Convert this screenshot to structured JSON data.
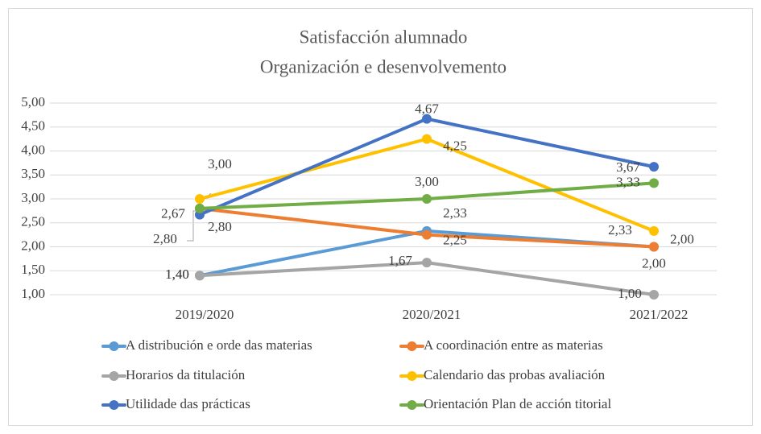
{
  "chart_data": {
    "type": "line",
    "title": [
      "Satisfacción alumnado",
      "Organización e desenvolvemento"
    ],
    "categories": [
      "2019/2020",
      "2020/2021",
      "2021/2022"
    ],
    "ylim": [
      1,
      5
    ],
    "yticks": [
      {
        "value": 1,
        "label": "1,00"
      },
      {
        "value": 1.5,
        "label": "1,50"
      },
      {
        "value": 2,
        "label": "2,00"
      },
      {
        "value": 2.5,
        "label": "2,50"
      },
      {
        "value": 3,
        "label": "3,00"
      },
      {
        "value": 3.5,
        "label": "3,50"
      },
      {
        "value": 4,
        "label": "4,00"
      },
      {
        "value": 4.5,
        "label": "4,50"
      },
      {
        "value": 5,
        "label": "5,00"
      }
    ],
    "grid": true,
    "legend": "bottom",
    "series": [
      {
        "name": "A distribución e orde das materias",
        "color": "#5b9bd5",
        "values": [
          1.4,
          2.33,
          2.0
        ],
        "value_labels": [
          "1,40",
          "2,33",
          "2,00"
        ]
      },
      {
        "name": "A coordinación entre as materias",
        "color": "#ed7d31",
        "values": [
          2.8,
          2.25,
          2.0
        ],
        "value_labels": [
          "2,80",
          "2,25",
          "2,00"
        ]
      },
      {
        "name": "Horarios da titulación",
        "color": "#a5a5a5",
        "values": [
          1.4,
          1.67,
          1.0
        ],
        "value_labels": [
          "1,40",
          "1,67",
          "1,00"
        ]
      },
      {
        "name": "Calendario das probas avaliación",
        "color": "#ffc000",
        "values": [
          3.0,
          4.25,
          2.33
        ],
        "value_labels": [
          "3,00",
          "4,25",
          "2,33"
        ]
      },
      {
        "name": "Utilidade das prácticas",
        "color": "#4472c4",
        "values": [
          2.67,
          4.67,
          3.67
        ],
        "value_labels": [
          "2,67",
          "4,67",
          "3,67"
        ]
      },
      {
        "name": "Orientación Plan de acción titorial",
        "color": "#70ad47",
        "values": [
          2.8,
          3.0,
          3.33
        ],
        "value_labels": [
          "2,80",
          "3,00",
          "3,33"
        ]
      }
    ]
  }
}
